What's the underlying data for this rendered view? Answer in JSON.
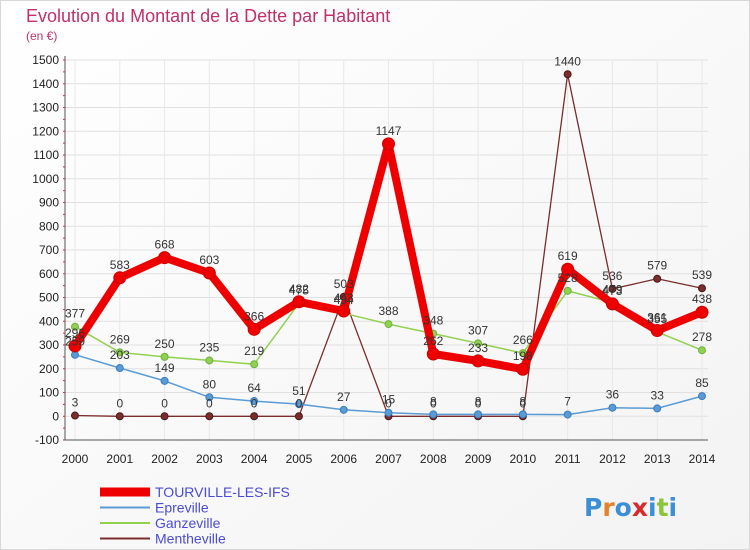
{
  "chart_data": {
    "type": "line",
    "title": "Evolution du Montant de la Dette par Habitant",
    "subtitle": "(en €)",
    "x": [
      "2000",
      "2001",
      "2002",
      "2003",
      "2004",
      "2005",
      "2006",
      "2007",
      "2008",
      "2009",
      "2010",
      "2011",
      "2012",
      "2013",
      "2014"
    ],
    "ylim": [
      -100,
      1500
    ],
    "yticks": [
      -100,
      0,
      100,
      200,
      300,
      400,
      500,
      600,
      700,
      800,
      900,
      1000,
      1100,
      1200,
      1300,
      1400,
      1500
    ],
    "grid": true,
    "legend_position": "bottom-left",
    "series": [
      {
        "name": "TOURVILLE-LES-IFS",
        "color": "#ee0000",
        "values": [
          296,
          583,
          668,
          603,
          366,
          482,
          443,
          1147,
          262,
          233,
          198,
          619,
          473,
          361,
          438
        ],
        "labels": [
          "296",
          "583",
          "668",
          "603",
          "366",
          "482",
          "443",
          "1147",
          "262",
          "233",
          "198",
          "619",
          "473",
          "361",
          "438"
        ]
      },
      {
        "name": "Epreville",
        "color": "#5b9bd5",
        "values": [
          259,
          203,
          149,
          80,
          64,
          51,
          27,
          15,
          8,
          8,
          8,
          7,
          36,
          33,
          85
        ],
        "labels": [
          "259",
          "203",
          "149",
          "80",
          "64",
          "51",
          "27",
          "15",
          "8",
          "8",
          "8",
          "7",
          "36",
          "33",
          "85"
        ]
      },
      {
        "name": "Ganzeville",
        "color": "#92d050",
        "values": [
          377,
          269,
          250,
          235,
          219,
          475,
          434,
          388,
          348,
          307,
          266,
          528,
          479,
          355,
          278
        ],
        "labels": [
          "377",
          "269",
          "250",
          "235",
          "219",
          "475",
          "434",
          "388",
          "348",
          "307",
          "266",
          "528",
          "479",
          "355",
          "278"
        ]
      },
      {
        "name": "Mentheville",
        "color": "#7b2c2c",
        "values": [
          3,
          0,
          0,
          0,
          0,
          0,
          503,
          0,
          0,
          0,
          0,
          1440,
          536,
          579,
          539
        ],
        "labels": [
          "3",
          "0",
          "0",
          "0",
          "0",
          "0",
          "503",
          "0",
          "0",
          "0",
          "0",
          "1440",
          "536",
          "579",
          "539"
        ]
      }
    ]
  },
  "brand": {
    "logo_text": "Proxiti"
  }
}
